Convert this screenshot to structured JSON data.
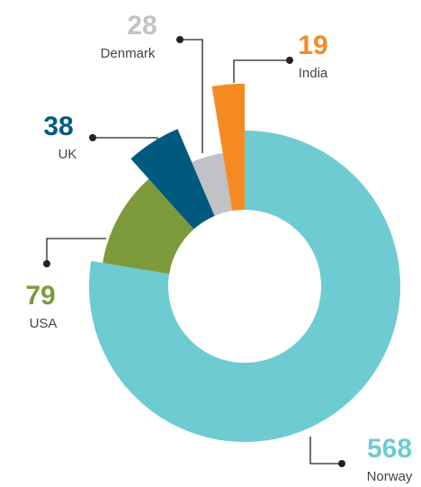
{
  "chart_data": {
    "type": "donut",
    "categories": [
      "Norway",
      "USA",
      "UK",
      "Denmark",
      "India"
    ],
    "values": [
      568,
      79,
      38,
      28,
      19
    ],
    "colors": [
      "#6ecbd2",
      "#7d9a3a",
      "#005a80",
      "#c0c2c6",
      "#f58a22"
    ]
  }
}
